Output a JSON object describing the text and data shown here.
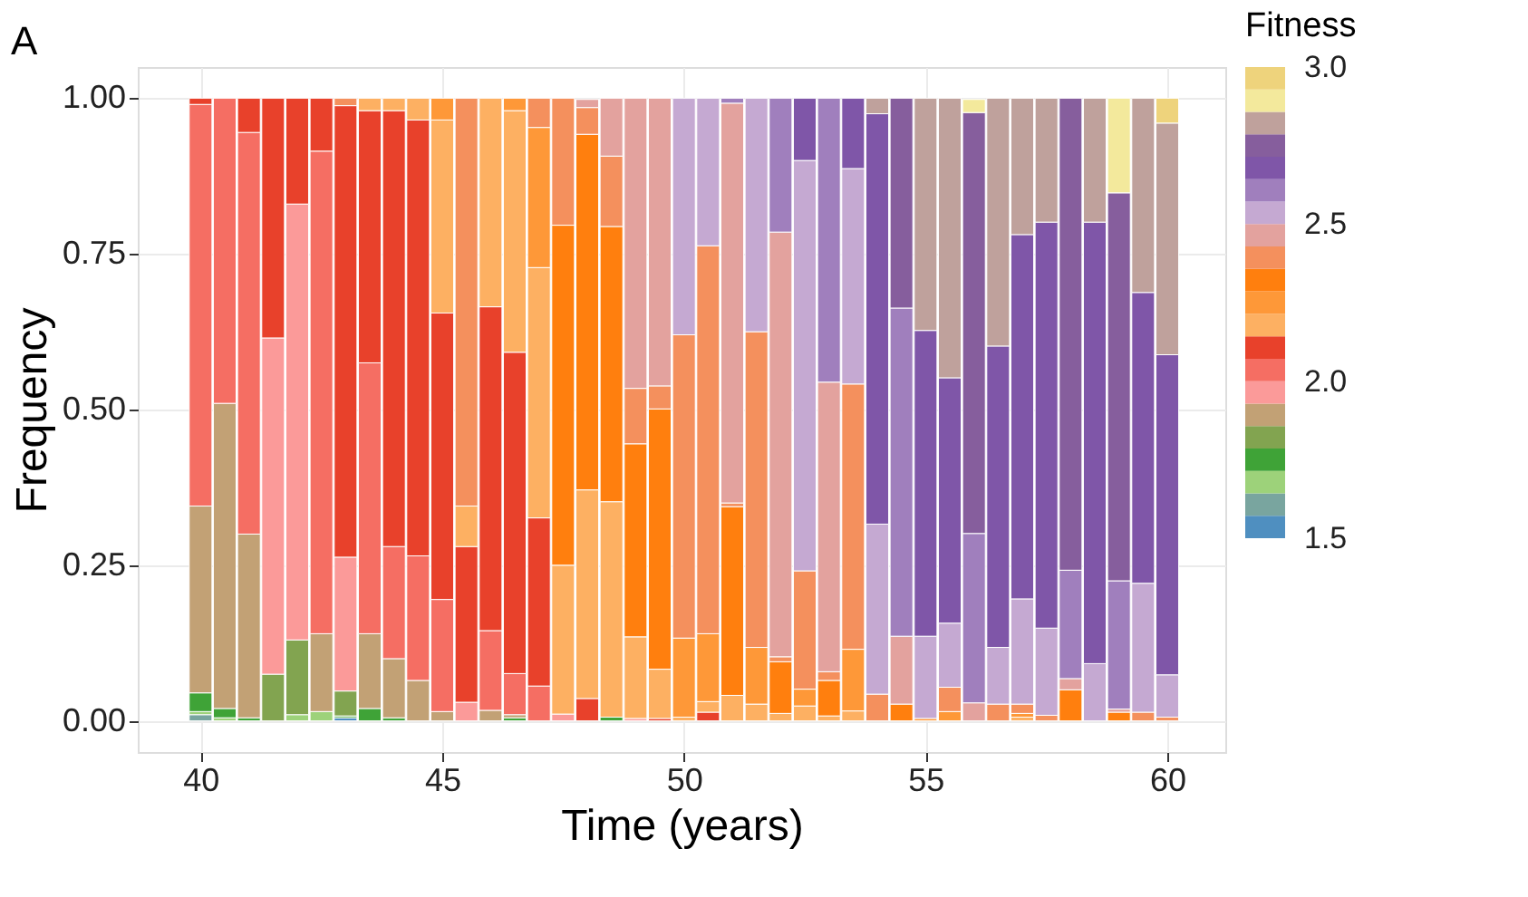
{
  "chart_data": {
    "type": "bar",
    "stacked": true,
    "title": "A",
    "xlabel": "Time (years)",
    "ylabel": "Frequency",
    "clabel": "Fitness",
    "clim": [
      1.5,
      3.0
    ],
    "cticks": [
      1.5,
      {
        "value": 2,
        "label": "2.0"
      },
      2.5,
      {
        "value": 3,
        "label": "3.0"
      }
    ],
    "grid": true,
    "x": [
      40,
      40.5,
      41,
      41.5,
      42,
      42.5,
      43,
      43.5,
      44,
      44.5,
      45,
      45.5,
      46,
      46.5,
      47,
      47.5,
      48,
      48.5,
      49,
      49.5,
      50,
      50.5,
      51,
      51.5,
      52,
      52.5,
      53,
      53.5,
      54,
      54.5,
      55,
      55.5,
      56,
      56.5,
      57,
      57.5,
      58,
      58.5,
      59,
      59.5,
      60
    ],
    "xlim": [
      38.7,
      61.2
    ],
    "xticks": [
      40,
      45,
      50,
      55,
      60
    ],
    "ylim": [
      -0.05,
      1.05
    ],
    "yticks": [
      {
        "value": 0,
        "label": "0.00"
      },
      {
        "value": 0.25,
        "label": "0.25"
      },
      {
        "value": 0.5,
        "label": "0.50"
      },
      {
        "value": 0.75,
        "label": "0.75"
      },
      {
        "value": 1,
        "label": "1.00"
      }
    ],
    "series": [
      {
        "color": "#4f8fc0",
        "values": [
          null,
          null,
          null,
          null,
          null,
          null,
          0.005,
          null,
          null,
          null,
          null,
          null,
          null,
          null,
          null,
          null,
          null,
          null,
          null,
          null,
          null,
          null,
          null,
          null,
          null,
          null,
          null,
          null,
          null,
          null,
          null,
          null,
          null,
          null,
          null,
          null,
          null,
          null,
          null,
          null,
          null
        ]
      },
      {
        "color": "#79a59f",
        "values": [
          0.01,
          null,
          null,
          null,
          null,
          null,
          null,
          null,
          null,
          null,
          null,
          null,
          null,
          null,
          null,
          null,
          null,
          null,
          null,
          null,
          null,
          null,
          null,
          null,
          null,
          null,
          null,
          null,
          null,
          null,
          null,
          null,
          null,
          null,
          null,
          null,
          null,
          null,
          null,
          null,
          null
        ]
      },
      {
        "color": "#9dd27a",
        "values": [
          0.005,
          0.005,
          null,
          null,
          0.01,
          0.015,
          null,
          null,
          null,
          null,
          null,
          null,
          null,
          null,
          null,
          null,
          null,
          null,
          null,
          null,
          null,
          null,
          null,
          null,
          null,
          null,
          null,
          null,
          null,
          null,
          null,
          null,
          null,
          null,
          null,
          null,
          null,
          null,
          null,
          null,
          null
        ]
      },
      {
        "color": "#3fa337",
        "values": [
          0.03,
          0.015,
          0.005,
          null,
          null,
          null,
          0.003,
          0.02,
          0.005,
          null,
          null,
          null,
          null,
          0.005,
          null,
          null,
          null,
          0.006,
          null,
          null,
          null,
          null,
          null,
          null,
          null,
          null,
          null,
          null,
          null,
          null,
          null,
          null,
          null,
          null,
          null,
          null,
          null,
          null,
          null,
          null,
          null
        ]
      },
      {
        "color": "#82a450",
        "values": [
          null,
          null,
          null,
          0.075,
          0.12,
          null,
          0.04,
          null,
          null,
          null,
          null,
          null,
          null,
          null,
          null,
          null,
          null,
          null,
          null,
          null,
          null,
          null,
          null,
          null,
          null,
          null,
          null,
          null,
          null,
          null,
          null,
          null,
          null,
          null,
          null,
          null,
          null,
          null,
          null,
          null,
          null
        ]
      },
      {
        "color": "#c2a175",
        "values": [
          0.3,
          0.49,
          0.295,
          null,
          null,
          0.125,
          null,
          0.12,
          0.095,
          0.065,
          0.015,
          null,
          0.017,
          0.005,
          null,
          null,
          null,
          null,
          null,
          null,
          null,
          null,
          null,
          null,
          null,
          null,
          null,
          null,
          null,
          null,
          null,
          null,
          null,
          null,
          null,
          null,
          null,
          null,
          null,
          null,
          null
        ]
      },
      {
        "color": "#fb9a99",
        "values": [
          null,
          null,
          null,
          0.54,
          0.7,
          null,
          0.215,
          null,
          null,
          null,
          null,
          0.03,
          null,
          null,
          null,
          0.011,
          null,
          null,
          0.004,
          null,
          null,
          null,
          null,
          null,
          null,
          null,
          null,
          null,
          null,
          null,
          null,
          null,
          null,
          null,
          null,
          null,
          null,
          null,
          null,
          null,
          null
        ]
      },
      {
        "color": "#f56e63",
        "values": [
          0.645,
          0.49,
          0.645,
          null,
          null,
          0.775,
          null,
          0.435,
          0.18,
          0.2,
          0.18,
          null,
          0.128,
          0.066,
          0.056,
          null,
          null,
          null,
          null,
          null,
          null,
          null,
          null,
          null,
          null,
          null,
          null,
          null,
          null,
          null,
          null,
          null,
          null,
          null,
          null,
          null,
          null,
          null,
          null,
          null,
          null
        ]
      },
      {
        "color": "#e8412b",
        "values": [
          0.01,
          null,
          0.055,
          0.385,
          0.17,
          0.085,
          0.725,
          0.405,
          0.7,
          0.7,
          0.46,
          0.25,
          0.52,
          0.516,
          0.27,
          null,
          0.036,
          null,
          null,
          0.004,
          null,
          0.014,
          null,
          null,
          null,
          null,
          null,
          null,
          null,
          null,
          null,
          null,
          null,
          null,
          null,
          null,
          null,
          null,
          null,
          null,
          null
        ]
      },
      {
        "color": "#fdb062",
        "values": [
          null,
          null,
          null,
          null,
          null,
          null,
          null,
          0.02,
          0.02,
          0.035,
          0.31,
          0.065,
          0.335,
          0.388,
          0.402,
          0.239,
          0.335,
          0.346,
          0.131,
          0.079,
          0.006,
          0.017,
          0.041,
          0.027,
          0.012,
          0.024,
          0.008,
          0.016,
          null,
          null,
          null,
          null,
          null,
          null,
          0.006,
          null,
          null,
          null,
          null,
          null,
          null
        ]
      },
      {
        "color": "#fe9838",
        "values": [
          null,
          null,
          null,
          null,
          null,
          null,
          null,
          null,
          null,
          null,
          0.035,
          null,
          null,
          0.02,
          0.225,
          null,
          null,
          null,
          null,
          null,
          0.127,
          0.109,
          null,
          0.091,
          null,
          0.027,
          null,
          0.099,
          null,
          null,
          0.004,
          0.015,
          null,
          null,
          0.006,
          null,
          null,
          null,
          null,
          null,
          null
        ]
      },
      {
        "color": "#ff7f0e",
        "values": [
          null,
          null,
          null,
          null,
          null,
          null,
          null,
          null,
          null,
          null,
          null,
          null,
          null,
          null,
          null,
          0.546,
          0.571,
          0.442,
          0.31,
          0.418,
          null,
          null,
          0.303,
          null,
          0.083,
          null,
          0.057,
          null,
          null,
          0.027,
          null,
          null,
          null,
          null,
          null,
          null,
          0.05,
          null,
          0.014,
          null,
          null
        ]
      },
      {
        "color": "#f4905d",
        "values": [
          null,
          null,
          null,
          null,
          null,
          null,
          0.012,
          null,
          null,
          null,
          null,
          0.655,
          null,
          null,
          0.047,
          0.204,
          0.043,
          0.113,
          0.089,
          0.037,
          0.487,
          0.623,
          0.006,
          0.507,
          0.008,
          0.19,
          0.014,
          0.426,
          0.043,
          null,
          null,
          0.039,
          null,
          0.027,
          0.015,
          0.009,
          null,
          null,
          null,
          0.014,
          0.006
        ]
      },
      {
        "color": "#e3a29e",
        "values": [
          null,
          null,
          null,
          null,
          null,
          null,
          null,
          null,
          null,
          null,
          null,
          null,
          null,
          null,
          null,
          null,
          0.013,
          0.093,
          0.466,
          0.462,
          null,
          null,
          0.642,
          null,
          0.682,
          null,
          0.465,
          null,
          null,
          0.109,
          null,
          null,
          0.029,
          null,
          null,
          null,
          0.018,
          null,
          0.005,
          null,
          null
        ]
      },
      {
        "color": "#c5a9d2",
        "values": [
          null,
          null,
          null,
          null,
          null,
          null,
          null,
          null,
          null,
          null,
          null,
          null,
          null,
          null,
          null,
          null,
          null,
          null,
          null,
          null,
          0.38,
          0.237,
          null,
          0.375,
          null,
          0.659,
          null,
          0.346,
          0.273,
          null,
          0.132,
          0.103,
          null,
          0.091,
          0.169,
          0.14,
          null,
          0.092,
          null,
          0.207,
          0.068
        ]
      },
      {
        "color": "#a07fbd",
        "values": [
          null,
          null,
          null,
          null,
          null,
          null,
          null,
          null,
          null,
          null,
          null,
          null,
          null,
          null,
          null,
          null,
          null,
          null,
          null,
          null,
          null,
          null,
          0.008,
          null,
          0.215,
          null,
          0.456,
          null,
          null,
          0.527,
          null,
          null,
          0.272,
          null,
          null,
          null,
          0.174,
          null,
          0.206,
          null,
          null
        ]
      },
      {
        "color": "#7f56a8",
        "values": [
          null,
          null,
          null,
          null,
          null,
          null,
          null,
          null,
          null,
          null,
          null,
          null,
          null,
          null,
          null,
          null,
          null,
          null,
          null,
          null,
          null,
          null,
          null,
          null,
          null,
          0.1,
          null,
          0.113,
          0.659,
          null,
          0.491,
          0.394,
          null,
          0.484,
          0.585,
          0.652,
          null,
          0.709,
          null,
          0.467,
          0.514
        ]
      },
      {
        "color": "#865e9d",
        "values": [
          null,
          null,
          null,
          null,
          null,
          null,
          null,
          null,
          null,
          null,
          null,
          null,
          null,
          null,
          null,
          null,
          null,
          null,
          null,
          null,
          null,
          null,
          null,
          null,
          null,
          null,
          null,
          null,
          null,
          0.337,
          null,
          null,
          0.676,
          null,
          null,
          null,
          0.758,
          null,
          0.623,
          null,
          null
        ]
      },
      {
        "color": "#bfa19c",
        "values": [
          null,
          null,
          null,
          null,
          null,
          null,
          null,
          null,
          null,
          null,
          null,
          null,
          null,
          null,
          null,
          null,
          null,
          null,
          null,
          null,
          null,
          null,
          null,
          null,
          null,
          null,
          null,
          null,
          0.025,
          null,
          0.373,
          0.449,
          null,
          0.398,
          0.219,
          0.199,
          null,
          0.199,
          null,
          0.312,
          0.372
        ]
      },
      {
        "color": "#f3e99c",
        "values": [
          null,
          null,
          null,
          null,
          null,
          null,
          null,
          null,
          null,
          null,
          null,
          null,
          null,
          null,
          null,
          null,
          null,
          null,
          null,
          null,
          null,
          null,
          null,
          null,
          null,
          null,
          null,
          null,
          null,
          null,
          null,
          null,
          0.021,
          null,
          null,
          null,
          null,
          null,
          0.152,
          null,
          null
        ]
      },
      {
        "color": "#eed37c",
        "values": [
          null,
          null,
          null,
          null,
          null,
          null,
          null,
          null,
          null,
          null,
          null,
          null,
          null,
          null,
          null,
          null,
          null,
          null,
          null,
          null,
          null,
          null,
          null,
          null,
          null,
          null,
          null,
          null,
          null,
          null,
          null,
          null,
          null,
          null,
          null,
          null,
          null,
          null,
          null,
          null,
          0.04
        ]
      }
    ]
  }
}
